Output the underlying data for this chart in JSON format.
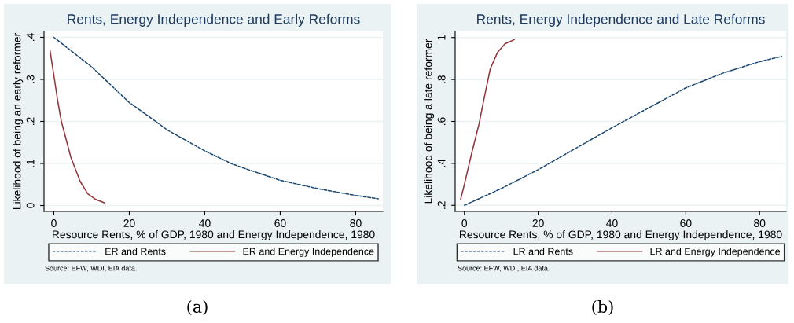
{
  "chart_data": [
    {
      "type": "line",
      "title": "Rents, Energy Independence and Early Reforms",
      "xlabel": "Resource Rents, % of GDP, 1980 and Energy Independence, 1980",
      "ylabel": "Likelihood of being an early reformer",
      "xlim": [
        -2.6,
        87.2
      ],
      "ylim": [
        -0.014,
        0.414
      ],
      "xticks": [
        0,
        20,
        40,
        60,
        80
      ],
      "yticks": [
        0,
        {
          "value": 0.1,
          "label": ".1"
        },
        {
          "value": 0.2,
          "label": ".2"
        },
        {
          "value": 0.3,
          "label": ".3"
        },
        {
          "value": 0.4,
          "label": ".4"
        }
      ],
      "grid": "y",
      "legend": "bottom",
      "series": [
        {
          "name": "ER and Rents",
          "color": "#1a476f",
          "line_style": "dashed",
          "x": [
            0,
            10,
            20,
            27,
            30,
            40,
            47,
            50,
            60,
            70,
            80,
            86
          ],
          "values": [
            0.4,
            0.33,
            0.245,
            0.2,
            0.18,
            0.13,
            0.1,
            0.09,
            0.06,
            0.04,
            0.024,
            0.016
          ]
        },
        {
          "name": "ER and Energy Independence",
          "color": "#90353b",
          "line_style": "solid",
          "x": [
            -1,
            0,
            1,
            2,
            4.5,
            7,
            9,
            11,
            13.5
          ],
          "values": [
            0.368,
            0.31,
            0.25,
            0.2,
            0.115,
            0.057,
            0.028,
            0.015,
            0.006
          ]
        }
      ],
      "annotations": [
        "Source: EFW, WDI, EIA data.",
        "(a)"
      ]
    },
    {
      "type": "line",
      "title": "Rents, Energy Independence and Late Reforms",
      "xlabel": "Resource Rents, % of GDP, 1980 and Energy Independence, 1980",
      "ylabel": "Likelihood of being a late reformer",
      "xlim": [
        -2.5,
        87.2
      ],
      "ylim": [
        0.171,
        1.029
      ],
      "xticks": [
        0,
        20,
        40,
        60,
        80
      ],
      "yticks": [
        {
          "value": 0.2,
          "label": ".2"
        },
        {
          "value": 0.4,
          "label": ".4"
        },
        {
          "value": 0.6,
          "label": ".6"
        },
        {
          "value": 0.8,
          "label": ".8"
        },
        1
      ],
      "grid": "y",
      "legend": "bottom",
      "series": [
        {
          "name": "LR and Rents",
          "color": "#1a476f",
          "line_style": "dashed",
          "x": [
            0,
            10,
            20,
            30,
            40,
            50,
            60,
            70,
            80,
            86
          ],
          "values": [
            0.2,
            0.28,
            0.37,
            0.47,
            0.57,
            0.665,
            0.76,
            0.83,
            0.885,
            0.91
          ]
        },
        {
          "name": "LR and Energy Independence",
          "color": "#90353b",
          "line_style": "solid",
          "x": [
            -1,
            0,
            2,
            4,
            5,
            7,
            9,
            11,
            13.5
          ],
          "values": [
            0.23,
            0.3,
            0.45,
            0.59,
            0.68,
            0.85,
            0.93,
            0.97,
            0.99
          ]
        }
      ],
      "annotations": [
        "Source: EFW, WDI, EIA data.",
        "(b)"
      ]
    }
  ]
}
